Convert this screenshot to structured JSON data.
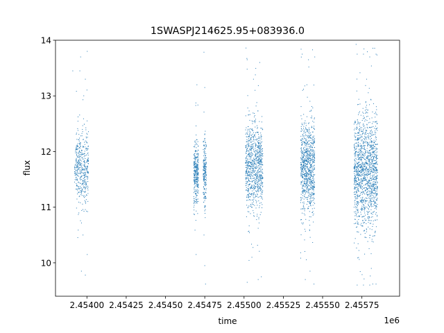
{
  "chart_data": {
    "type": "scatter",
    "title": "1SWASPJ214625.95+083936.0",
    "xlabel": "time",
    "ylabel": "flux",
    "x_offset_label": "1e6",
    "xlim": [
      2453800,
      2455990
    ],
    "ylim": [
      9.4,
      14.0
    ],
    "x_ticks": [
      2454000,
      2454250,
      2454500,
      2454750,
      2455000,
      2455250,
      2455500,
      2455750
    ],
    "x_tick_labels": [
      "2.45400",
      "2.45425",
      "2.45450",
      "2.45475",
      "2.45500",
      "2.45525",
      "2.45550",
      "2.45575"
    ],
    "y_ticks": [
      10,
      11,
      12,
      13,
      14
    ],
    "y_tick_labels": [
      "10",
      "11",
      "12",
      "13",
      "14"
    ],
    "grid": false,
    "legend": "none",
    "point_color": "#1f77b4",
    "series": [
      {
        "clusters": [
          {
            "x_range": [
              2453920,
              2453935
            ],
            "y_center": 11.7,
            "y_spread": 0.2,
            "count": 25
          },
          {
            "x_range": [
              2453930,
              2454010
            ],
            "y_center": 11.72,
            "y_spread": 0.32,
            "count": 420
          }
        ],
        "sample_points": [
          {
            "x": 2453960,
            "y": 13.7
          },
          {
            "x": 2453955,
            "y": 13.45
          },
          {
            "x": 2453990,
            "y": 13.3
          },
          {
            "x": 2454002,
            "y": 13.8
          },
          {
            "x": 2453965,
            "y": 9.85
          },
          {
            "x": 2453990,
            "y": 9.78
          },
          {
            "x": 2454002,
            "y": 10.15
          },
          {
            "x": 2453975,
            "y": 10.5
          },
          {
            "x": 2453910,
            "y": 13.45
          }
        ]
      },
      {
        "clusters": [
          {
            "x_range": [
              2454680,
              2454710
            ],
            "y_center": 11.6,
            "y_spread": 0.28,
            "count": 320
          },
          {
            "x_range": [
              2454740,
              2454760
            ],
            "y_center": 11.65,
            "y_spread": 0.3,
            "count": 220
          }
        ],
        "sample_points": [
          {
            "x": 2454700,
            "y": 13.2
          },
          {
            "x": 2454750,
            "y": 13.15
          },
          {
            "x": 2454755,
            "y": 9.62
          },
          {
            "x": 2454750,
            "y": 9.95
          },
          {
            "x": 2454745,
            "y": 10.5
          },
          {
            "x": 2454695,
            "y": 10.15
          }
        ]
      },
      {
        "clusters": [
          {
            "x_range": [
              2455010,
              2455120
            ],
            "y_center": 11.75,
            "y_spread": 0.38,
            "count": 900
          }
        ],
        "sample_points": [
          {
            "x": 2455020,
            "y": 13.65
          },
          {
            "x": 2455100,
            "y": 13.6
          },
          {
            "x": 2455060,
            "y": 13.3
          },
          {
            "x": 2455020,
            "y": 9.65
          },
          {
            "x": 2455090,
            "y": 9.7
          },
          {
            "x": 2455110,
            "y": 9.75
          },
          {
            "x": 2455050,
            "y": 10.1
          },
          {
            "x": 2455070,
            "y": 13.1
          }
        ]
      },
      {
        "clusters": [
          {
            "x_range": [
              2455360,
              2455450
            ],
            "y_center": 11.7,
            "y_spread": 0.4,
            "count": 900
          }
        ],
        "sample_points": [
          {
            "x": 2455370,
            "y": 13.75
          },
          {
            "x": 2455410,
            "y": 13.65
          },
          {
            "x": 2455450,
            "y": 13.7
          },
          {
            "x": 2455390,
            "y": 9.7
          },
          {
            "x": 2455445,
            "y": 9.62
          },
          {
            "x": 2455420,
            "y": 9.85
          },
          {
            "x": 2455400,
            "y": 13.2
          }
        ]
      },
      {
        "clusters": [
          {
            "x_range": [
              2455700,
              2455850
            ],
            "y_center": 11.65,
            "y_spread": 0.5,
            "count": 1500
          }
        ],
        "sample_points": [
          {
            "x": 2455720,
            "y": 13.75
          },
          {
            "x": 2455760,
            "y": 13.75
          },
          {
            "x": 2455800,
            "y": 13.7
          },
          {
            "x": 2455840,
            "y": 13.75
          },
          {
            "x": 2455720,
            "y": 9.6
          },
          {
            "x": 2455760,
            "y": 9.6
          },
          {
            "x": 2455800,
            "y": 9.6
          },
          {
            "x": 2455840,
            "y": 9.62
          },
          {
            "x": 2455780,
            "y": 13.3
          },
          {
            "x": 2455810,
            "y": 9.9
          }
        ]
      }
    ]
  }
}
